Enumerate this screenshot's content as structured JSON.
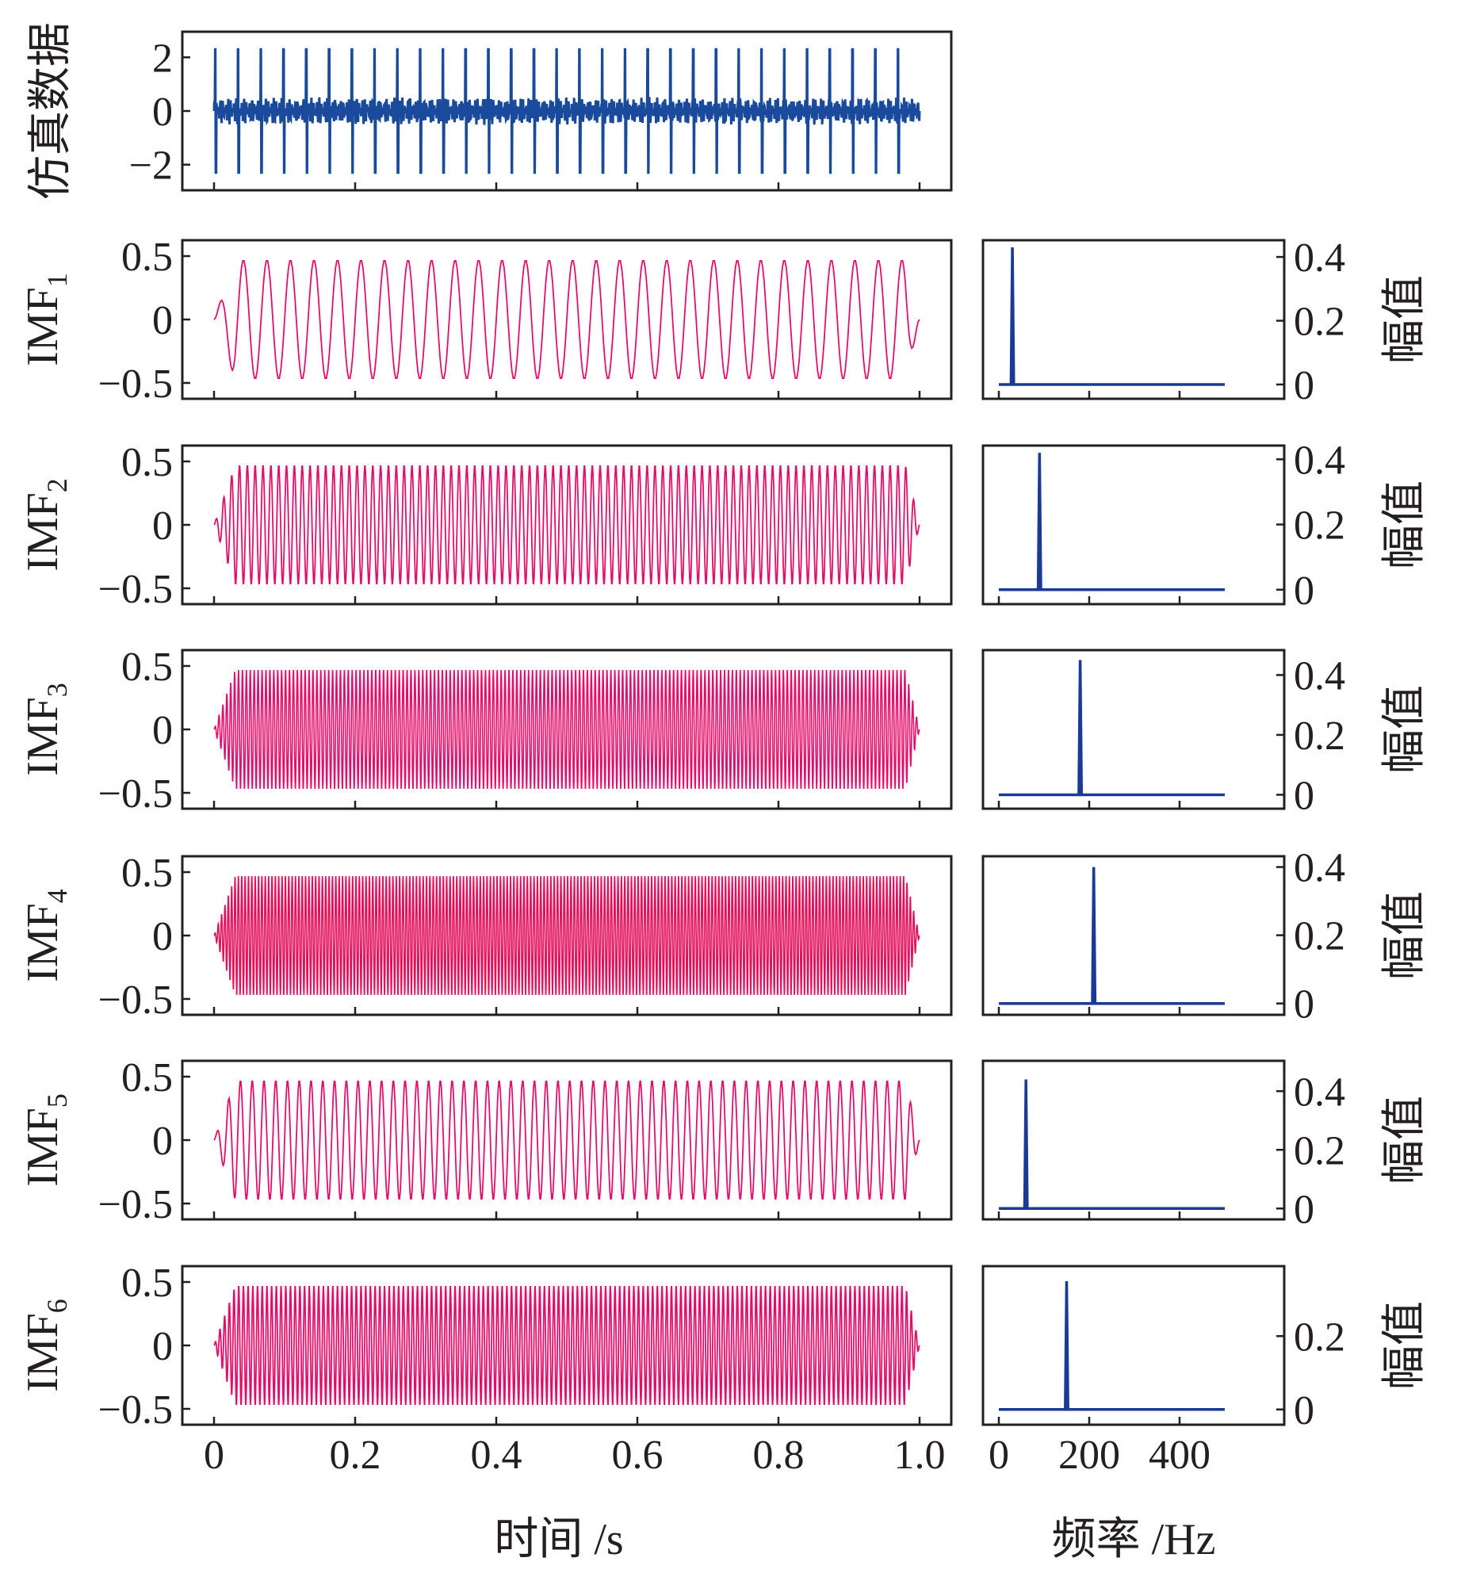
{
  "chart_data": [
    {
      "type": "line",
      "panel": "signal",
      "ylabel": "仿真数据",
      "xlim": [
        0,
        1.0
      ],
      "ylim": [
        -2.6,
        2.6
      ],
      "yticks": [
        {
          "v": 2,
          "label": "2"
        },
        {
          "v": 0,
          "label": "0"
        },
        {
          "v": -2,
          "label": "−2"
        }
      ],
      "series": [
        {
          "amplitude": 2.3,
          "pulse_count": 31,
          "noise_amplitude": 0.4
        }
      ],
      "color": "#1a4a9c"
    },
    {
      "type": "line",
      "panel": "imf",
      "ylabel_main": "IMF",
      "ylabel_sub": "1",
      "xlim": [
        0,
        1.0
      ],
      "ylim": [
        -0.55,
        0.55
      ],
      "yticks": [
        {
          "v": 0.5,
          "label": "0.5"
        },
        {
          "v": 0,
          "label": "0"
        },
        {
          "v": -0.5,
          "label": "−0.5"
        }
      ],
      "series": [
        {
          "frequency_hz": 30,
          "amplitude": 0.47
        }
      ],
      "color": "#e0106a"
    },
    {
      "type": "line",
      "panel": "imf",
      "ylabel_main": "IMF",
      "ylabel_sub": "2",
      "xlim": [
        0,
        1.0
      ],
      "ylim": [
        -0.55,
        0.55
      ],
      "yticks": [
        {
          "v": 0.5,
          "label": "0.5"
        },
        {
          "v": 0,
          "label": "0"
        },
        {
          "v": -0.5,
          "label": "−0.5"
        }
      ],
      "series": [
        {
          "frequency_hz": 90,
          "amplitude": 0.47
        }
      ],
      "color": "#e0106a"
    },
    {
      "type": "line",
      "panel": "imf",
      "ylabel_main": "IMF",
      "ylabel_sub": "3",
      "xlim": [
        0,
        1.0
      ],
      "ylim": [
        -0.55,
        0.55
      ],
      "yticks": [
        {
          "v": 0.5,
          "label": "0.5"
        },
        {
          "v": 0,
          "label": "0"
        },
        {
          "v": -0.5,
          "label": "−0.5"
        }
      ],
      "series": [
        {
          "frequency_hz": 180,
          "amplitude": 0.47
        }
      ],
      "color": "#e0106a"
    },
    {
      "type": "line",
      "panel": "imf",
      "ylabel_main": "IMF",
      "ylabel_sub": "4",
      "xlim": [
        0,
        1.0
      ],
      "ylim": [
        -0.55,
        0.55
      ],
      "yticks": [
        {
          "v": 0.5,
          "label": "0.5"
        },
        {
          "v": 0,
          "label": "0"
        },
        {
          "v": -0.5,
          "label": "−0.5"
        }
      ],
      "series": [
        {
          "frequency_hz": 210,
          "amplitude": 0.47
        }
      ],
      "color": "#e0105a"
    },
    {
      "type": "line",
      "panel": "imf",
      "ylabel_main": "IMF",
      "ylabel_sub": "5",
      "xlim": [
        0,
        1.0
      ],
      "ylim": [
        -0.55,
        0.55
      ],
      "yticks": [
        {
          "v": 0.5,
          "label": "0.5"
        },
        {
          "v": 0,
          "label": "0"
        },
        {
          "v": -0.5,
          "label": "−0.5"
        }
      ],
      "series": [
        {
          "frequency_hz": 60,
          "amplitude": 0.47
        }
      ],
      "color": "#e0106a"
    },
    {
      "type": "line",
      "panel": "imf",
      "ylabel_main": "IMF",
      "ylabel_sub": "6",
      "xlim": [
        0,
        1.0
      ],
      "ylim": [
        -0.55,
        0.55
      ],
      "yticks": [
        {
          "v": 0.5,
          "label": "0.5"
        },
        {
          "v": 0,
          "label": "0"
        },
        {
          "v": -0.5,
          "label": "−0.5"
        }
      ],
      "series": [
        {
          "frequency_hz": 150,
          "amplitude": 0.47
        }
      ],
      "color": "#e0106a"
    },
    {
      "type": "line",
      "panel": "spectrum",
      "ylabel": "幅值",
      "xlim": [
        -10,
        510
      ],
      "ylim": [
        -0.02,
        0.44
      ],
      "yticks": [
        {
          "v": 0.4,
          "label": "0.4"
        },
        {
          "v": 0.2,
          "label": "0.2"
        },
        {
          "v": 0,
          "label": "0"
        }
      ],
      "series": [
        {
          "peak_frequency_hz": 30,
          "peak_amplitude": 0.43
        }
      ],
      "color": "#1a3a95"
    },
    {
      "type": "line",
      "panel": "spectrum",
      "ylabel": "幅值",
      "xlim": [
        -10,
        510
      ],
      "ylim": [
        -0.02,
        0.43
      ],
      "yticks": [
        {
          "v": 0.4,
          "label": "0.4"
        },
        {
          "v": 0.2,
          "label": "0.2"
        },
        {
          "v": 0,
          "label": "0"
        }
      ],
      "series": [
        {
          "peak_frequency_hz": 90,
          "peak_amplitude": 0.42
        }
      ],
      "color": "#1a3a95"
    },
    {
      "type": "line",
      "panel": "spectrum",
      "ylabel": "幅值",
      "xlim": [
        -10,
        510
      ],
      "ylim": [
        -0.02,
        0.47
      ],
      "yticks": [
        {
          "v": 0.4,
          "label": "0.4"
        },
        {
          "v": 0.2,
          "label": "0.2"
        },
        {
          "v": 0,
          "label": "0"
        }
      ],
      "series": [
        {
          "peak_frequency_hz": 180,
          "peak_amplitude": 0.45
        }
      ],
      "color": "#1a3a95"
    },
    {
      "type": "line",
      "panel": "spectrum",
      "ylabel": "幅值",
      "xlim": [
        -10,
        510
      ],
      "ylim": [
        -0.01,
        0.42
      ],
      "yticks": [
        {
          "v": 0.4,
          "label": "0.4"
        },
        {
          "v": 0.2,
          "label": "0.2"
        },
        {
          "v": 0,
          "label": "0"
        }
      ],
      "series": [
        {
          "peak_frequency_hz": 210,
          "peak_amplitude": 0.4
        }
      ],
      "color": "#1a3a95"
    },
    {
      "type": "line",
      "panel": "spectrum",
      "ylabel": "幅值",
      "xlim": [
        -10,
        510
      ],
      "ylim": [
        -0.01,
        0.49
      ],
      "yticks": [
        {
          "v": 0.4,
          "label": "0.4"
        },
        {
          "v": 0.2,
          "label": "0.2"
        },
        {
          "v": 0,
          "label": "0"
        }
      ],
      "series": [
        {
          "peak_frequency_hz": 60,
          "peak_amplitude": 0.44
        }
      ],
      "color": "#1a3a95"
    },
    {
      "type": "line",
      "panel": "spectrum",
      "ylabel": "幅值",
      "xlim": [
        -10,
        510
      ],
      "ylim": [
        -0.02,
        0.38
      ],
      "yticks": [
        {
          "v": 0.2,
          "label": "0.2"
        },
        {
          "v": 0,
          "label": "0"
        }
      ],
      "series": [
        {
          "peak_frequency_hz": 150,
          "peak_amplitude": 0.35
        }
      ],
      "color": "#1a3a95"
    }
  ],
  "time_axis": {
    "label": "时间 /s",
    "ticks": [
      {
        "v": 0,
        "label": "0"
      },
      {
        "v": 0.2,
        "label": "0.2"
      },
      {
        "v": 0.4,
        "label": "0.4"
      },
      {
        "v": 0.6,
        "label": "0.6"
      },
      {
        "v": 0.8,
        "label": "0.8"
      },
      {
        "v": 1.0,
        "label": "1.0"
      }
    ]
  },
  "freq_axis": {
    "label": "频率 /Hz",
    "ticks": [
      {
        "v": 0,
        "label": "0"
      },
      {
        "v": 200,
        "label": "200"
      },
      {
        "v": 400,
        "label": "400"
      }
    ]
  }
}
